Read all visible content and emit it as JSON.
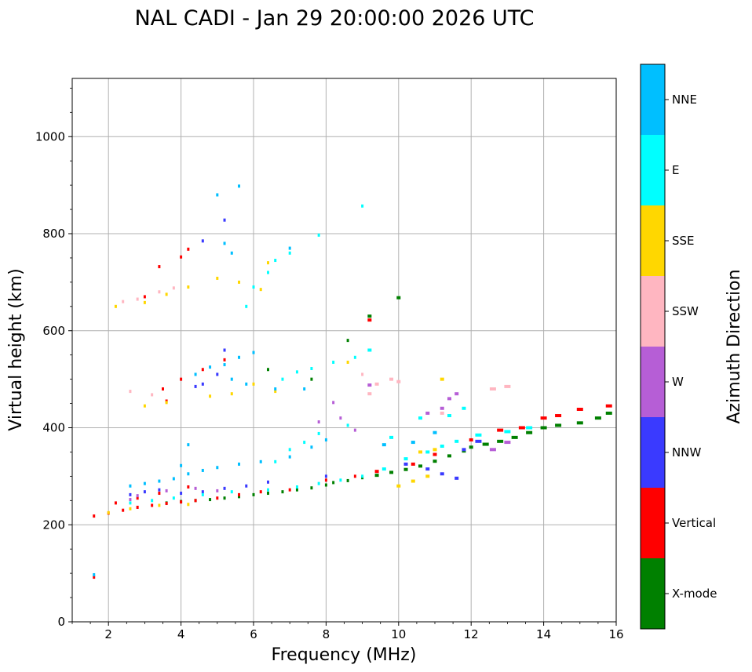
{
  "chart_data": {
    "type": "scatter",
    "title": "NAL CADI - Jan 29 20:00:00 2026 UTC",
    "xlabel": "Frequency (MHz)",
    "ylabel": "Virtual height (km)",
    "xlim": [
      1.0,
      16.0
    ],
    "ylim": [
      0,
      1120
    ],
    "xticks": [
      2,
      4,
      6,
      8,
      10,
      12,
      14,
      16
    ],
    "yticks": [
      0,
      200,
      400,
      600,
      800,
      1000
    ],
    "grid": true,
    "colorbar": {
      "label": "Azimuth Direction",
      "categories": [
        {
          "name": "X-mode",
          "color": "#008000"
        },
        {
          "name": "Vertical",
          "color": "#ff0000"
        },
        {
          "name": "NNW",
          "color": "#3a3aff"
        },
        {
          "name": "W",
          "color": "#b65ed6"
        },
        {
          "name": "SSW",
          "color": "#ffb6c1"
        },
        {
          "name": "SSE",
          "color": "#ffd700"
        },
        {
          "name": "E",
          "color": "#00ffff"
        },
        {
          "name": "NNE",
          "color": "#00bfff"
        }
      ]
    },
    "series": [
      {
        "name": "X-mode",
        "points": [
          [
            3.6,
            245
          ],
          [
            4.0,
            248
          ],
          [
            4.4,
            250
          ],
          [
            4.8,
            252
          ],
          [
            5.2,
            255
          ],
          [
            5.6,
            258
          ],
          [
            6.0,
            262
          ],
          [
            6.4,
            265
          ],
          [
            6.8,
            268
          ],
          [
            7.2,
            272
          ],
          [
            7.6,
            276
          ],
          [
            8.0,
            282
          ],
          [
            8.2,
            287
          ],
          [
            8.6,
            291
          ],
          [
            9.0,
            297
          ],
          [
            9.4,
            302
          ],
          [
            9.8,
            308
          ],
          [
            10.2,
            314
          ],
          [
            10.6,
            321
          ],
          [
            11.0,
            331
          ],
          [
            11.4,
            342
          ],
          [
            11.8,
            352
          ],
          [
            12.0,
            360
          ],
          [
            12.4,
            366
          ],
          [
            12.8,
            372
          ],
          [
            13.2,
            380
          ],
          [
            13.6,
            390
          ],
          [
            14.0,
            400
          ],
          [
            14.4,
            405
          ],
          [
            15.0,
            410
          ],
          [
            15.5,
            420
          ],
          [
            15.8,
            430
          ],
          [
            8.6,
            580
          ],
          [
            10.0,
            668
          ],
          [
            9.2,
            630
          ],
          [
            7.6,
            500
          ],
          [
            6.4,
            520
          ]
        ]
      },
      {
        "name": "Vertical",
        "points": [
          [
            1.6,
            218
          ],
          [
            2.0,
            224
          ],
          [
            2.4,
            230
          ],
          [
            2.8,
            236
          ],
          [
            3.2,
            240
          ],
          [
            3.6,
            244
          ],
          [
            4.0,
            247
          ],
          [
            4.4,
            250
          ],
          [
            5.0,
            255
          ],
          [
            5.6,
            262
          ],
          [
            6.2,
            268
          ],
          [
            7.0,
            272
          ],
          [
            8.0,
            292
          ],
          [
            8.8,
            300
          ],
          [
            9.4,
            310
          ],
          [
            10.4,
            325
          ],
          [
            11.0,
            345
          ],
          [
            12.0,
            375
          ],
          [
            12.8,
            395
          ],
          [
            13.4,
            400
          ],
          [
            14.0,
            420
          ],
          [
            14.4,
            425
          ],
          [
            15.0,
            438
          ],
          [
            15.8,
            445
          ],
          [
            2.2,
            245
          ],
          [
            2.8,
            255
          ],
          [
            3.4,
            265
          ],
          [
            4.2,
            278
          ],
          [
            3.5,
            480
          ],
          [
            4.0,
            500
          ],
          [
            4.6,
            520
          ],
          [
            5.2,
            540
          ],
          [
            3.4,
            732
          ],
          [
            4.0,
            752
          ],
          [
            4.2,
            768
          ],
          [
            3.0,
            670
          ],
          [
            9.2,
            622
          ],
          [
            1.6,
            92
          ],
          [
            3.6,
            455
          ]
        ]
      },
      {
        "name": "NNW",
        "points": [
          [
            2.6,
            262
          ],
          [
            3.0,
            268
          ],
          [
            3.4,
            272
          ],
          [
            4.0,
            265
          ],
          [
            4.6,
            268
          ],
          [
            5.2,
            275
          ],
          [
            5.8,
            280
          ],
          [
            6.4,
            288
          ],
          [
            8.0,
            300
          ],
          [
            10.2,
            325
          ],
          [
            10.8,
            315
          ],
          [
            11.2,
            305
          ],
          [
            11.6,
            296
          ],
          [
            12.2,
            372
          ],
          [
            11.8,
            355
          ],
          [
            4.6,
            490
          ],
          [
            5.0,
            510
          ],
          [
            4.4,
            485
          ],
          [
            5.2,
            560
          ],
          [
            4.6,
            785
          ],
          [
            5.2,
            828
          ]
        ]
      },
      {
        "name": "W",
        "points": [
          [
            2.8,
            260
          ],
          [
            3.6,
            270
          ],
          [
            4.4,
            275
          ],
          [
            5.0,
            270
          ],
          [
            7.8,
            412
          ],
          [
            8.4,
            420
          ],
          [
            8.8,
            395
          ],
          [
            9.2,
            488
          ],
          [
            10.8,
            430
          ],
          [
            11.2,
            440
          ],
          [
            11.4,
            460
          ],
          [
            11.6,
            470
          ],
          [
            12.6,
            355
          ],
          [
            13.0,
            370
          ],
          [
            8.2,
            452
          ],
          [
            2.6,
            252
          ]
        ]
      },
      {
        "name": "SSW",
        "points": [
          [
            2.4,
            660
          ],
          [
            2.8,
            665
          ],
          [
            3.4,
            680
          ],
          [
            3.8,
            688
          ],
          [
            2.6,
            475
          ],
          [
            3.2,
            468
          ],
          [
            9.4,
            490
          ],
          [
            9.8,
            500
          ],
          [
            10.0,
            495
          ],
          [
            12.6,
            480
          ],
          [
            13.0,
            485
          ],
          [
            11.2,
            430
          ],
          [
            9.0,
            510
          ],
          [
            9.2,
            470
          ]
        ]
      },
      {
        "name": "SSE",
        "points": [
          [
            2.2,
            650
          ],
          [
            3.0,
            658
          ],
          [
            3.6,
            675
          ],
          [
            4.2,
            690
          ],
          [
            5.0,
            708
          ],
          [
            5.6,
            700
          ],
          [
            6.2,
            685
          ],
          [
            4.8,
            465
          ],
          [
            5.4,
            470
          ],
          [
            6.0,
            490
          ],
          [
            6.6,
            475
          ],
          [
            3.0,
            445
          ],
          [
            3.6,
            452
          ],
          [
            10.0,
            280
          ],
          [
            10.4,
            290
          ],
          [
            10.8,
            300
          ],
          [
            11.0,
            355
          ],
          [
            10.6,
            350
          ],
          [
            11.2,
            500
          ],
          [
            8.6,
            535
          ],
          [
            6.4,
            740
          ],
          [
            2.0,
            225
          ],
          [
            2.6,
            233
          ],
          [
            3.4,
            240
          ],
          [
            4.2,
            242
          ]
        ]
      },
      {
        "name": "E",
        "points": [
          [
            2.6,
            245
          ],
          [
            3.2,
            250
          ],
          [
            3.8,
            255
          ],
          [
            4.6,
            262
          ],
          [
            5.4,
            268
          ],
          [
            6.4,
            272
          ],
          [
            7.2,
            278
          ],
          [
            7.8,
            285
          ],
          [
            8.4,
            292
          ],
          [
            9.0,
            300
          ],
          [
            9.6,
            315
          ],
          [
            10.2,
            336
          ],
          [
            10.8,
            350
          ],
          [
            11.2,
            362
          ],
          [
            11.6,
            372
          ],
          [
            12.2,
            385
          ],
          [
            13.0,
            392
          ],
          [
            13.6,
            400
          ],
          [
            6.6,
            330
          ],
          [
            7.0,
            355
          ],
          [
            7.4,
            370
          ],
          [
            7.8,
            388
          ],
          [
            8.6,
            405
          ],
          [
            9.8,
            380
          ],
          [
            10.6,
            420
          ],
          [
            11.4,
            425
          ],
          [
            11.8,
            440
          ],
          [
            6.8,
            500
          ],
          [
            7.2,
            515
          ],
          [
            7.6,
            522
          ],
          [
            8.2,
            535
          ],
          [
            8.8,
            545
          ],
          [
            9.2,
            560
          ],
          [
            6.6,
            745
          ],
          [
            7.0,
            760
          ],
          [
            7.8,
            797
          ],
          [
            9.0,
            857
          ],
          [
            5.8,
            650
          ],
          [
            6.0,
            690
          ],
          [
            6.4,
            720
          ]
        ]
      },
      {
        "name": "NNE",
        "points": [
          [
            2.6,
            280
          ],
          [
            3.0,
            285
          ],
          [
            3.4,
            290
          ],
          [
            3.8,
            295
          ],
          [
            4.2,
            305
          ],
          [
            4.6,
            312
          ],
          [
            5.0,
            318
          ],
          [
            5.6,
            325
          ],
          [
            6.2,
            330
          ],
          [
            7.0,
            340
          ],
          [
            7.6,
            360
          ],
          [
            8.0,
            375
          ],
          [
            4.0,
            322
          ],
          [
            4.2,
            365
          ],
          [
            4.4,
            510
          ],
          [
            4.8,
            525
          ],
          [
            5.2,
            530
          ],
          [
            5.6,
            545
          ],
          [
            6.0,
            555
          ],
          [
            5.4,
            500
          ],
          [
            5.8,
            490
          ],
          [
            6.6,
            480
          ],
          [
            7.4,
            480
          ],
          [
            9.6,
            365
          ],
          [
            10.4,
            370
          ],
          [
            11.0,
            390
          ],
          [
            5.0,
            880
          ],
          [
            5.6,
            898
          ],
          [
            7.0,
            770
          ],
          [
            5.2,
            780
          ],
          [
            5.4,
            760
          ],
          [
            1.6,
            97
          ]
        ]
      }
    ]
  }
}
